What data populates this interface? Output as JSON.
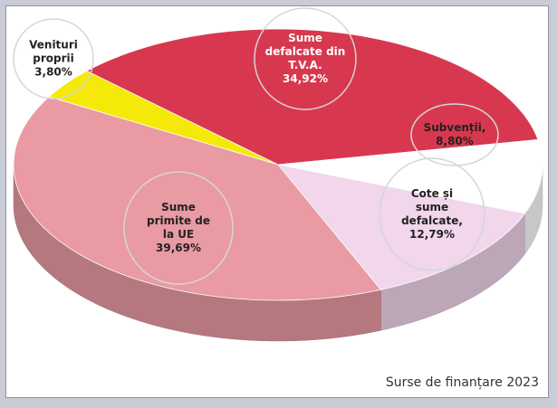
{
  "chart_data": {
    "type": "pie3d",
    "categories": [
      "Venituri proprii",
      "Sume defalcate din T.V.A.",
      "Subvenții,",
      "Cote și sume defalcate,",
      "Sume primite de la UE"
    ],
    "values": [
      3.8,
      34.92,
      8.8,
      12.79,
      39.69
    ],
    "value_labels": [
      "3,80%",
      "34,92%",
      "8,80%",
      "12,79%",
      "39,69%"
    ],
    "colors": [
      "#f5e90a",
      "#d8384f",
      "#ffffff",
      "#f1d6ec",
      "#e99aa3"
    ],
    "caption": "Surse de finanțare 2023"
  }
}
